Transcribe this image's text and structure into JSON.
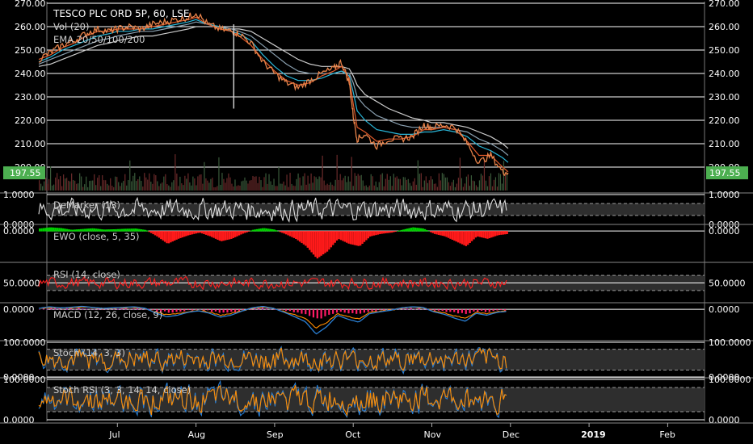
{
  "chart_data": {
    "type": "line",
    "title": "TESCO PLC ORD 5P, 60, LSE",
    "last_price": "197.55",
    "colors": {
      "background": "#000000",
      "grid": "#ffffff",
      "price": "#e8834a",
      "ema20": "#e05a2a",
      "ema50": "#29b6d8",
      "ema100": "#8aa0b0",
      "ema200": "#cccccc",
      "badge": "#4caf50",
      "up": "#00d000",
      "down": "#ff1a1a",
      "rsi": "#ff2020",
      "macd": "#2a7fd4",
      "signal": "#ff8c00",
      "stoch_k": "#2a7fd4",
      "stoch_d": "#ff8c00",
      "demarker": "#dddddd"
    },
    "x_axis": {
      "labels": [
        "Jul",
        "Aug",
        "Sep",
        "Oct",
        "Nov",
        "Dec",
        "2019",
        "Feb"
      ],
      "positions_month_index": [
        1,
        2,
        3,
        4,
        5,
        6,
        7,
        8
      ]
    },
    "price_panel": {
      "legend": [
        "Vol (20)",
        "EMA 20/50/100/200"
      ],
      "ylim": [
        190,
        270
      ],
      "y_ticks": [
        "270.00",
        "260.00",
        "250.00",
        "240.00",
        "230.00",
        "220.00",
        "210.00",
        "200.00"
      ],
      "y_tick_values": [
        270,
        260,
        250,
        240,
        230,
        220,
        210,
        200
      ],
      "x": [
        0.0,
        0.15,
        0.3,
        0.45,
        0.6,
        0.75,
        0.9,
        1.0,
        1.15,
        1.3,
        1.45,
        1.6,
        1.75,
        1.9,
        2.0,
        2.15,
        2.3,
        2.45,
        2.55,
        2.7,
        2.85,
        3.0,
        3.15,
        3.3,
        3.45,
        3.6,
        3.75,
        3.85,
        3.95,
        4.0,
        4.05,
        4.15,
        4.3,
        4.45,
        4.6,
        4.75,
        4.9,
        5.0,
        5.15,
        5.3,
        5.45,
        5.6,
        5.75,
        5.9,
        5.97
      ],
      "close": [
        246,
        249,
        252,
        254,
        257,
        259,
        258,
        259,
        260,
        259,
        261,
        262,
        263,
        264,
        266,
        261,
        259,
        258,
        257,
        253,
        245,
        240,
        236,
        234,
        237,
        240,
        242,
        245,
        236,
        222,
        212,
        214,
        209,
        212,
        212,
        213,
        218,
        217,
        218,
        217,
        210,
        202,
        205,
        198,
        197.55
      ],
      "ema20": [
        246,
        248,
        251,
        253,
        256,
        258,
        258,
        259,
        259,
        259,
        260,
        261,
        262,
        263,
        264,
        261,
        259,
        258,
        256,
        252,
        246,
        241,
        237,
        235,
        236,
        239,
        241,
        243,
        238,
        227,
        217,
        215,
        211,
        212,
        212,
        213,
        216,
        216,
        217,
        216,
        211,
        205,
        205,
        200,
        198
      ],
      "ema50": [
        245,
        247,
        250,
        252,
        254,
        256,
        257,
        258,
        258,
        259,
        259,
        260,
        261,
        262,
        263,
        261,
        260,
        258,
        257,
        254,
        248,
        243,
        239,
        237,
        237,
        238,
        240,
        241,
        239,
        232,
        224,
        220,
        216,
        215,
        214,
        214,
        215,
        215,
        216,
        215,
        213,
        209,
        207,
        204,
        202
      ],
      "ema100": [
        244,
        246,
        248,
        250,
        252,
        254,
        255,
        256,
        257,
        258,
        258,
        259,
        260,
        261,
        262,
        261,
        260,
        259,
        258,
        256,
        252,
        248,
        244,
        241,
        240,
        240,
        240,
        241,
        240,
        236,
        230,
        226,
        222,
        220,
        218,
        217,
        217,
        217,
        217,
        216,
        215,
        212,
        210,
        207,
        205
      ],
      "ema200": [
        243,
        244,
        246,
        248,
        250,
        252,
        253,
        254,
        255,
        256,
        256,
        257,
        258,
        259,
        260,
        260,
        260,
        259,
        259,
        258,
        255,
        252,
        249,
        246,
        244,
        243,
        243,
        243,
        242,
        239,
        235,
        231,
        228,
        225,
        223,
        221,
        220,
        219,
        219,
        218,
        217,
        215,
        213,
        210,
        208
      ]
    },
    "panels": [
      {
        "name": "DeMarker",
        "legend": "DeMarker (13)",
        "ylim": [
          0,
          1
        ],
        "y_ticks": [
          "1.0000",
          "0.0000"
        ],
        "y_tick_values": [
          1,
          0
        ],
        "bands": [
          0.3,
          0.7
        ],
        "oscillation": 0.5,
        "center": 0.5,
        "color_key": "demarker"
      },
      {
        "name": "EWO",
        "legend": "EWO (close, 5, 35)",
        "ylim": [
          -12,
          2
        ],
        "y_ticks": [
          "0.0000"
        ],
        "y_tick_values": [
          0
        ],
        "values": [
          1,
          1.5,
          1.2,
          0.5,
          0.8,
          1.1,
          0.6,
          0.7,
          0.9,
          1.0,
          0.4,
          -2,
          -5,
          -3,
          -1.5,
          -0.5,
          -2,
          -4,
          -3,
          -1,
          0.5,
          1.2,
          0.6,
          -1,
          -3,
          -6,
          -11,
          -8,
          -3,
          -5,
          -6,
          -2,
          -1,
          -0.5,
          0.5,
          1.5,
          1,
          -1,
          -2,
          -4,
          -6,
          -2,
          -3,
          -1.5,
          -1
        ]
      },
      {
        "name": "RSI",
        "legend": "RSI (14, close)",
        "ylim": [
          0,
          100
        ],
        "y_ticks": [
          "50.0000"
        ],
        "y_tick_values": [
          50
        ],
        "bands": [
          30,
          70
        ],
        "oscillation": 20,
        "center": 50,
        "color_key": "rsi"
      },
      {
        "name": "MACD",
        "legend": "MACD (12, 26, close, 9)",
        "ylim": [
          -6,
          1
        ],
        "y_ticks": [
          "0.0000"
        ],
        "y_tick_values": [
          0
        ],
        "values": [
          0.2,
          0.5,
          0.3,
          0.4,
          0.6,
          0.4,
          0.2,
          0.3,
          0.4,
          0.5,
          0.2,
          -0.8,
          -1.5,
          -1.2,
          -0.6,
          -0.3,
          -0.8,
          -1.6,
          -1.2,
          -0.4,
          0.3,
          0.6,
          0.2,
          -0.6,
          -1.5,
          -2.5,
          -5,
          -3.5,
          -1.2,
          -2,
          -2.6,
          -0.9,
          -0.5,
          -0.2,
          0.3,
          0.5,
          0.4,
          -0.5,
          -1,
          -1.8,
          -2.4,
          -0.8,
          -1.2,
          -0.6,
          -0.4
        ]
      },
      {
        "name": "Stoch",
        "legend": "Stoch (14, 3, 3)",
        "ylim": [
          0,
          100
        ],
        "y_ticks": [
          "100.0000",
          "0.0000"
        ],
        "y_tick_values": [
          100,
          0
        ],
        "bands": [
          20,
          80
        ],
        "oscillation": 48,
        "center": 50,
        "color_key": "stoch"
      },
      {
        "name": "StochRSI",
        "legend": "Stoch RSI (3, 3, 14, 14, close)",
        "ylim": [
          0,
          100
        ],
        "y_ticks": [
          "100.0000",
          "0.0000"
        ],
        "y_tick_values": [
          100,
          0
        ],
        "bands": [
          20,
          80
        ],
        "oscillation": 50,
        "center": 50,
        "color_key": "stoch"
      }
    ]
  }
}
